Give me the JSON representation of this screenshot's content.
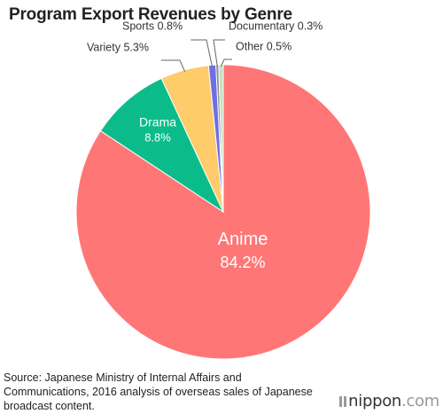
{
  "title": "Program Export Revenues by Genre",
  "source": "Source: Japanese Ministry of Internal Affairs and Communications, 2016 analysis of overseas sales of Japanese broadcast content.",
  "logo": {
    "name": "nippon",
    "suffix": ".com"
  },
  "chart_data": {
    "type": "pie",
    "title": "Program Export Revenues by Genre",
    "unit": "%",
    "slices": [
      {
        "label": "Anime",
        "value": 84.2,
        "value_label": "84.2%",
        "color": "#ff7676"
      },
      {
        "label": "Drama",
        "value": 8.8,
        "value_label": "8.8%",
        "color": "#0bbc8a"
      },
      {
        "label": "Variety",
        "value": 5.3,
        "value_label": "5.3%",
        "color": "#ffcb6b"
      },
      {
        "label": "Sports",
        "value": 0.8,
        "value_label": "0.8%",
        "color": "#6e6ee6"
      },
      {
        "label": "Documentary",
        "value": 0.3,
        "value_label": "0.3%",
        "color": "#8a8a8a"
      },
      {
        "label": "Other",
        "value": 0.5,
        "value_label": "0.5%",
        "color": "#c7e0c1"
      }
    ]
  }
}
